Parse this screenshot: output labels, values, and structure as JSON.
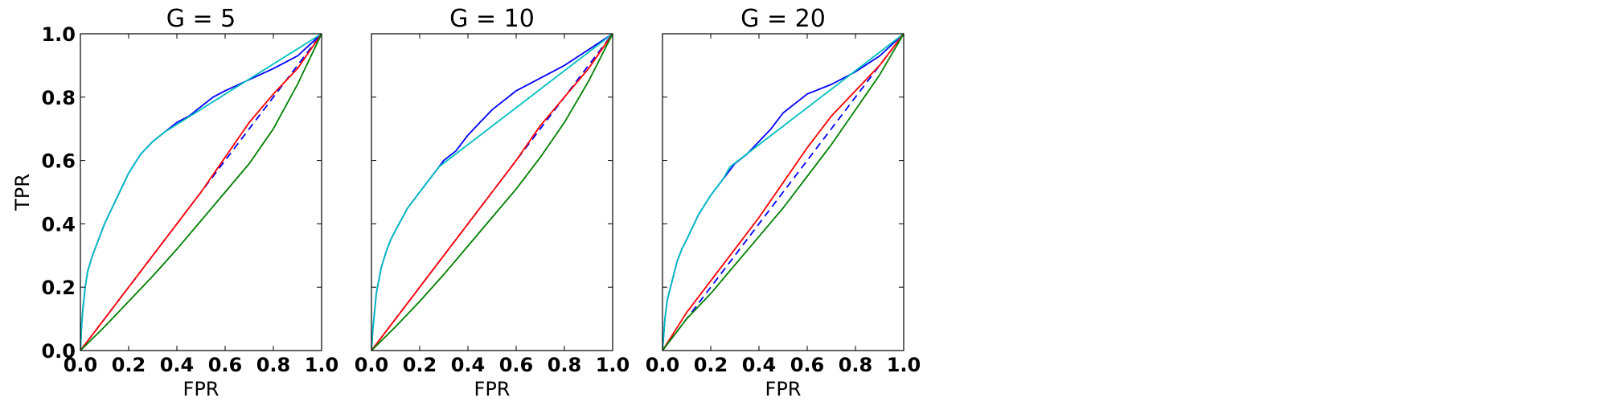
{
  "chart_data": [
    {
      "type": "line",
      "title": "G = 5",
      "xlabel": "FPR",
      "ylabel": "TPR",
      "xlim": [
        0.0,
        1.0
      ],
      "ylim": [
        0.0,
        1.0
      ],
      "xticks": [
        "0.0",
        "0.2",
        "0.4",
        "0.6",
        "0.8",
        "1.0"
      ],
      "yticks": [
        "0.0",
        "0.2",
        "0.4",
        "0.6",
        "0.8",
        "1.0"
      ],
      "grid": false,
      "series": [
        {
          "name": "diagonal",
          "color": "#0000ff",
          "style": "dashed",
          "x": [
            0,
            1
          ],
          "y": [
            0,
            1
          ]
        },
        {
          "name": "roc-blue",
          "color": "#0000ff",
          "style": "solid",
          "x": [
            0,
            0.005,
            0.01,
            0.02,
            0.03,
            0.05,
            0.08,
            0.1,
            0.15,
            0.2,
            0.25,
            0.3,
            0.35,
            0.4,
            0.45,
            0.5,
            0.55,
            0.6,
            0.7,
            0.8,
            0.9,
            1.0
          ],
          "y": [
            0,
            0.08,
            0.13,
            0.2,
            0.25,
            0.3,
            0.36,
            0.4,
            0.48,
            0.56,
            0.62,
            0.66,
            0.69,
            0.72,
            0.74,
            0.77,
            0.8,
            0.82,
            0.855,
            0.89,
            0.93,
            1.0
          ]
        },
        {
          "name": "hull-cyan",
          "color": "#00bfbf",
          "style": "solid",
          "x": [
            0,
            0.005,
            0.01,
            0.02,
            0.03,
            0.05,
            0.08,
            0.1,
            0.15,
            0.2,
            0.25,
            0.3,
            0.35,
            1.0
          ],
          "y": [
            0,
            0.08,
            0.13,
            0.2,
            0.25,
            0.3,
            0.36,
            0.4,
            0.48,
            0.56,
            0.62,
            0.66,
            0.69,
            1.0
          ]
        },
        {
          "name": "roc-red",
          "color": "#ff0000",
          "style": "solid",
          "x": [
            0,
            0.1,
            0.2,
            0.3,
            0.4,
            0.5,
            0.6,
            0.7,
            0.8,
            0.9,
            1.0
          ],
          "y": [
            0,
            0.1,
            0.2,
            0.3,
            0.4,
            0.5,
            0.61,
            0.72,
            0.81,
            0.89,
            1.0
          ]
        },
        {
          "name": "roc-green",
          "color": "#008000",
          "style": "solid",
          "x": [
            0,
            0.1,
            0.2,
            0.3,
            0.4,
            0.5,
            0.6,
            0.7,
            0.8,
            0.9,
            1.0
          ],
          "y": [
            0,
            0.075,
            0.155,
            0.235,
            0.32,
            0.41,
            0.5,
            0.59,
            0.7,
            0.84,
            1.0
          ]
        }
      ]
    },
    {
      "type": "line",
      "title": "G = 10",
      "xlabel": "FPR",
      "ylabel": "",
      "xlim": [
        0.0,
        1.0
      ],
      "ylim": [
        0.0,
        1.0
      ],
      "xticks": [
        "0.0",
        "0.2",
        "0.4",
        "0.6",
        "0.8",
        "1.0"
      ],
      "yticks": [],
      "grid": false,
      "series": [
        {
          "name": "diagonal",
          "color": "#0000ff",
          "style": "dashed",
          "x": [
            0,
            1
          ],
          "y": [
            0,
            1
          ]
        },
        {
          "name": "roc-blue",
          "color": "#0000ff",
          "style": "solid",
          "x": [
            0,
            0.005,
            0.01,
            0.02,
            0.04,
            0.06,
            0.08,
            0.1,
            0.15,
            0.2,
            0.25,
            0.3,
            0.35,
            0.4,
            0.45,
            0.5,
            0.6,
            0.7,
            0.8,
            0.9,
            1.0
          ],
          "y": [
            0,
            0.06,
            0.1,
            0.18,
            0.26,
            0.31,
            0.35,
            0.38,
            0.45,
            0.5,
            0.55,
            0.6,
            0.63,
            0.68,
            0.72,
            0.76,
            0.82,
            0.86,
            0.9,
            0.95,
            1.0
          ]
        },
        {
          "name": "hull-cyan",
          "color": "#00bfbf",
          "style": "solid",
          "x": [
            0,
            0.005,
            0.01,
            0.02,
            0.04,
            0.06,
            0.08,
            0.1,
            0.15,
            0.2,
            0.25,
            0.28,
            1.0
          ],
          "y": [
            0,
            0.06,
            0.1,
            0.18,
            0.26,
            0.31,
            0.35,
            0.38,
            0.45,
            0.5,
            0.55,
            0.58,
            1.0
          ]
        },
        {
          "name": "roc-red",
          "color": "#ff0000",
          "style": "solid",
          "x": [
            0,
            0.1,
            0.2,
            0.3,
            0.4,
            0.5,
            0.6,
            0.7,
            0.8,
            0.9,
            1.0
          ],
          "y": [
            0,
            0.1,
            0.2,
            0.3,
            0.4,
            0.5,
            0.6,
            0.71,
            0.8,
            0.89,
            1.0
          ]
        },
        {
          "name": "roc-green",
          "color": "#008000",
          "style": "solid",
          "x": [
            0,
            0.1,
            0.2,
            0.3,
            0.4,
            0.5,
            0.6,
            0.7,
            0.8,
            0.9,
            1.0
          ],
          "y": [
            0,
            0.075,
            0.155,
            0.24,
            0.33,
            0.42,
            0.51,
            0.61,
            0.72,
            0.85,
            1.0
          ]
        }
      ]
    },
    {
      "type": "line",
      "title": "G = 20",
      "xlabel": "FPR",
      "ylabel": "",
      "xlim": [
        0.0,
        1.0
      ],
      "ylim": [
        0.0,
        1.0
      ],
      "xticks": [
        "0.0",
        "0.2",
        "0.4",
        "0.6",
        "0.8",
        "1.0"
      ],
      "yticks": [],
      "grid": false,
      "series": [
        {
          "name": "diagonal",
          "color": "#0000ff",
          "style": "dashed",
          "x": [
            0,
            1
          ],
          "y": [
            0,
            1
          ]
        },
        {
          "name": "roc-blue",
          "color": "#0000ff",
          "style": "solid",
          "x": [
            0,
            0.005,
            0.01,
            0.02,
            0.04,
            0.06,
            0.08,
            0.1,
            0.15,
            0.2,
            0.25,
            0.3,
            0.35,
            0.4,
            0.45,
            0.5,
            0.55,
            0.6,
            0.7,
            0.8,
            0.9,
            1.0
          ],
          "y": [
            0,
            0.05,
            0.1,
            0.16,
            0.22,
            0.28,
            0.32,
            0.35,
            0.43,
            0.49,
            0.54,
            0.59,
            0.62,
            0.66,
            0.7,
            0.75,
            0.78,
            0.81,
            0.84,
            0.88,
            0.93,
            1.0
          ]
        },
        {
          "name": "hull-cyan",
          "color": "#00bfbf",
          "style": "solid",
          "x": [
            0,
            0.005,
            0.01,
            0.02,
            0.04,
            0.06,
            0.08,
            0.1,
            0.15,
            0.2,
            0.25,
            0.28,
            1.0
          ],
          "y": [
            0,
            0.05,
            0.1,
            0.16,
            0.22,
            0.28,
            0.32,
            0.35,
            0.43,
            0.49,
            0.54,
            0.58,
            1.0
          ]
        },
        {
          "name": "roc-red",
          "color": "#ff0000",
          "style": "solid",
          "x": [
            0,
            0.1,
            0.2,
            0.3,
            0.4,
            0.5,
            0.6,
            0.7,
            0.8,
            0.9,
            1.0
          ],
          "y": [
            0,
            0.12,
            0.22,
            0.32,
            0.42,
            0.53,
            0.64,
            0.74,
            0.82,
            0.9,
            1.0
          ]
        },
        {
          "name": "roc-green",
          "color": "#008000",
          "style": "solid",
          "x": [
            0,
            0.05,
            0.1,
            0.2,
            0.3,
            0.4,
            0.5,
            0.6,
            0.7,
            0.8,
            0.9,
            1.0
          ],
          "y": [
            0,
            0.05,
            0.1,
            0.18,
            0.27,
            0.36,
            0.45,
            0.55,
            0.65,
            0.76,
            0.87,
            1.0
          ]
        }
      ]
    }
  ]
}
